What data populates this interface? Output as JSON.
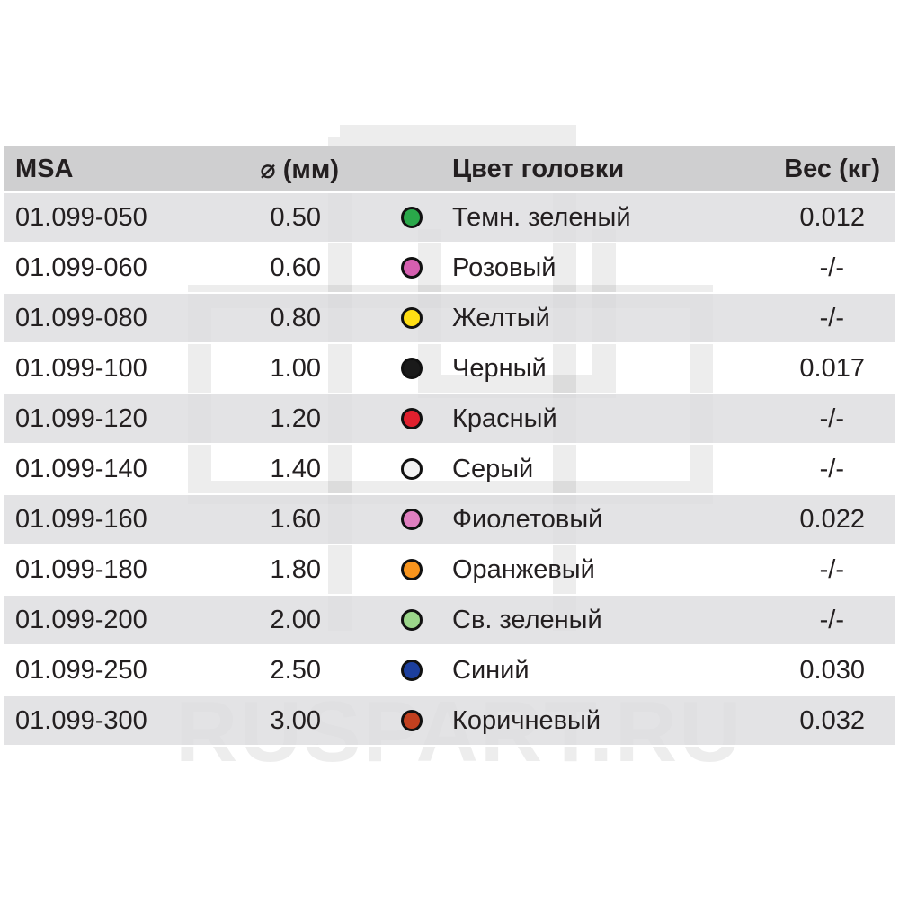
{
  "watermark": "RUSPART.RU",
  "header": {
    "msa": "MSA",
    "diameter": "⌀ (мм)",
    "color": "Цвет головки",
    "weight": "Вес (кг)"
  },
  "rows": [
    {
      "msa": "01.099-050",
      "diameter": "0.50",
      "color": "Темн. зеленый",
      "dot": "#2aa84a",
      "weight": "0.012"
    },
    {
      "msa": "01.099-060",
      "diameter": "0.60",
      "color": "Розовый",
      "dot": "#d65fb0",
      "weight": "-/-"
    },
    {
      "msa": "01.099-080",
      "diameter": "0.80",
      "color": "Желтый",
      "dot": "#ffde14",
      "weight": "-/-"
    },
    {
      "msa": "01.099-100",
      "diameter": "1.00",
      "color": "Черный",
      "dot": "#1a1a1a",
      "weight": "0.017"
    },
    {
      "msa": "01.099-120",
      "diameter": "1.20",
      "color": "Красный",
      "dot": "#e0202e",
      "weight": "-/-"
    },
    {
      "msa": "01.099-140",
      "diameter": "1.40",
      "color": "Серый",
      "dot": "#f2f2f2",
      "weight": "-/-"
    },
    {
      "msa": "01.099-160",
      "diameter": "1.60",
      "color": "Фиолетовый",
      "dot": "#e07fc0",
      "weight": "0.022"
    },
    {
      "msa": "01.099-180",
      "diameter": "1.80",
      "color": "Оранжевый",
      "dot": "#f7941d",
      "weight": "-/-"
    },
    {
      "msa": "01.099-200",
      "diameter": "2.00",
      "color": "Св. зеленый",
      "dot": "#9bd68a",
      "weight": "-/-"
    },
    {
      "msa": "01.099-250",
      "diameter": "2.50",
      "color": "Синий",
      "dot": "#1c3f9e",
      "weight": "0.030"
    },
    {
      "msa": "01.099-300",
      "diameter": "3.00",
      "color": "Коричневый",
      "dot": "#c2401f",
      "weight": "0.032"
    }
  ]
}
